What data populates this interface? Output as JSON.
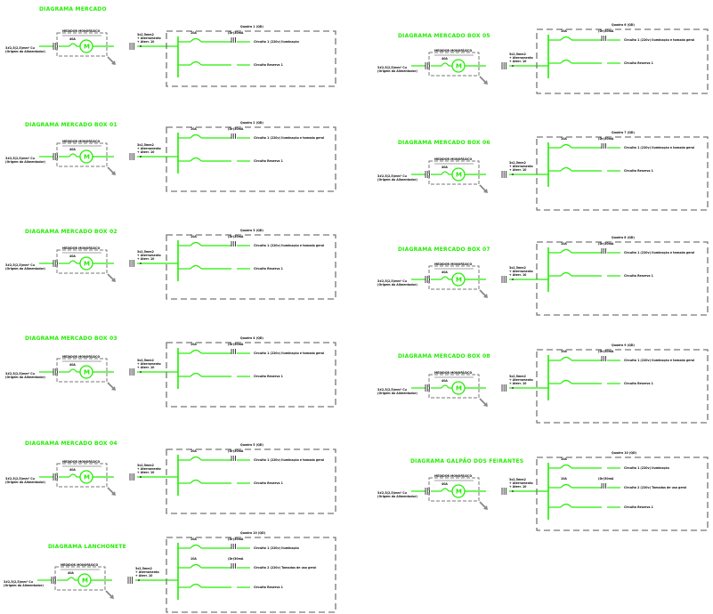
{
  "diagrams": [
    {
      "title": "DIAGRAMA MERCADO",
      "source": [
        "3#2,5(2,5)mm² Cu",
        "(Origem do Alimentador)"
      ],
      "meter_label": "MEDIDOR MONOFÁSICO",
      "main_breaker": "40A",
      "cable_label": [
        "3x2,5mm2",
        "+ Aterramento",
        "+ Aterr. 10"
      ],
      "board_title": "Quadro 1 (QD)",
      "circuits": [
        {
          "breaker": "10A",
          "dr": "(Dr)30mA",
          "label": "Circuito 1 (220v) Iluminação"
        },
        {
          "breaker": "",
          "dr": "",
          "label": "Circuito Reserva 1"
        }
      ]
    },
    {
      "title": "DIAGRAMA MERCADO BOX 01",
      "source": [
        "3#2,5(2,5)mm² Cu",
        "(Origem do Alimentador)"
      ],
      "meter_label": "MEDIDOR MONOFÁSICO",
      "main_breaker": "40A",
      "cable_label": [
        "3x2,5mm2",
        "+ Aterramento",
        "+ Aterr. 10"
      ],
      "board_title": "Quadro 2 (QD)",
      "circuits": [
        {
          "breaker": "10A",
          "dr": "(Dr)30mA",
          "label": "Circuito 1 (220v) Iluminação e tomada geral"
        },
        {
          "breaker": "",
          "dr": "",
          "label": "Circuito Reserva 1"
        }
      ]
    },
    {
      "title": "DIAGRAMA MERCADO BOX 02",
      "source": [
        "3#2,5(2,5)mm² Cu",
        "(Origem do Alimentador)"
      ],
      "meter_label": "MEDIDOR MONOFÁSICO",
      "main_breaker": "40A",
      "cable_label": [
        "3x2,5mm2",
        "+ Aterramento",
        "+ Aterr. 10"
      ],
      "board_title": "Quadro 3 (QD)",
      "circuits": [
        {
          "breaker": "10A",
          "dr": "(Dr)30mA",
          "label": "Circuito 1 (220v) Iluminação e tomada geral"
        },
        {
          "breaker": "",
          "dr": "",
          "label": "Circuito Reserva 1"
        }
      ]
    },
    {
      "title": "DIAGRAMA MERCADO BOX 03",
      "source": [
        "3#2,5(2,5)mm² Cu",
        "(Origem do Alimentador)"
      ],
      "meter_label": "MEDIDOR MONOFÁSICO",
      "main_breaker": "40A",
      "cable_label": [
        "3x2,5mm2",
        "+ Aterramento",
        "+ Aterr. 10"
      ],
      "board_title": "Quadro 4 (QD)",
      "circuits": [
        {
          "breaker": "10A",
          "dr": "(Dr)30mA",
          "label": "Circuito 1 (220v) Iluminação e tomada geral"
        },
        {
          "breaker": "",
          "dr": "",
          "label": "Circuito Reserva 1"
        }
      ]
    },
    {
      "title": "DIAGRAMA MERCADO BOX 04",
      "source": [
        "3#2,5(2,5)mm² Cu",
        "(Origem do Alimentador)"
      ],
      "meter_label": "MEDIDOR MONOFÁSICO",
      "main_breaker": "40A",
      "cable_label": [
        "3x2,5mm2",
        "+ Aterramento",
        "+ Aterr. 10"
      ],
      "board_title": "Quadro 5 (QD)",
      "circuits": [
        {
          "breaker": "10A",
          "dr": "(Dr)30mA",
          "label": "Circuito 1 (220v) Iluminação e tomada geral"
        },
        {
          "breaker": "",
          "dr": "",
          "label": "Circuito Reserva 1"
        }
      ]
    },
    {
      "title": "DIAGRAMA LANCHONETE",
      "source": [
        "3#2,5(2,5)mm² Cu",
        "(Origem do Alimentador)"
      ],
      "meter_label": "MEDIDOR MONOFÁSICO",
      "main_breaker": "40A",
      "cable_label": [
        "3x2,5mm2",
        "+ Aterramento",
        "+ Aterr. 10"
      ],
      "board_title": "Quadro 10 (QD)",
      "circuits": [
        {
          "breaker": "10A",
          "dr": "(Dr)30mA",
          "label": "Circuito 1 (220v) Iluminação"
        },
        {
          "breaker": "10A",
          "dr": "(Dr)30mA",
          "label": "Circuito 2 (220v) Tomadas de uso geral"
        },
        {
          "breaker": "",
          "dr": "",
          "label": "Circuito Reserva 1"
        }
      ]
    },
    {
      "title": "DIAGRAMA MERCADO BOX 05",
      "source": [
        "3#2,5(2,5)mm² Cu",
        "(Origem do Alimentador)"
      ],
      "meter_label": "MEDIDOR MONOFÁSICO",
      "main_breaker": "40A",
      "cable_label": [
        "3x2,5mm2",
        "+ Aterramento",
        "+ Aterr. 10"
      ],
      "board_title": "Quadro 6 (QD)",
      "circuits": [
        {
          "breaker": "10A",
          "dr": "(Dr)30mA",
          "label": "Circuito 1 (220v) Iluminação e tomada geral"
        },
        {
          "breaker": "",
          "dr": "",
          "label": "Circuito Reserva 1"
        }
      ]
    },
    {
      "title": "DIAGRAMA MERCADO BOX 06",
      "source": [
        "3#2,5(2,5)mm² Cu",
        "(Origem do Alimentador)"
      ],
      "meter_label": "MEDIDOR MONOFÁSICO",
      "main_breaker": "40A",
      "cable_label": [
        "3x2,5mm2",
        "+ Aterramento",
        "+ Aterr. 10"
      ],
      "board_title": "Quadro 7 (QD)",
      "circuits": [
        {
          "breaker": "10A",
          "dr": "(Dr)30mA",
          "label": "Circuito 1 (220v) Iluminação e tomada geral"
        },
        {
          "breaker": "",
          "dr": "",
          "label": "Circuito Reserva 1"
        }
      ]
    },
    {
      "title": "DIAGRAMA MERCADO BOX 07",
      "source": [
        "3#2,5(2,5)mm² Cu",
        "(Origem do Alimentador)"
      ],
      "meter_label": "MEDIDOR MONOFÁSICO",
      "main_breaker": "40A",
      "cable_label": [
        "3x2,5mm2",
        "+ Aterramento",
        "+ Aterr. 10"
      ],
      "board_title": "Quadro 8 (QD)",
      "circuits": [
        {
          "breaker": "10A",
          "dr": "(Dr)30mA",
          "label": "Circuito 1 (220v) Iluminação e tomada geral"
        },
        {
          "breaker": "",
          "dr": "",
          "label": "Circuito Reserva 1"
        }
      ]
    },
    {
      "title": "DIAGRAMA MERCADO BOX 08",
      "source": [
        "3#2,5(2,5)mm² Cu",
        "(Origem do Alimentador)"
      ],
      "meter_label": "MEDIDOR MONOFÁSICO",
      "main_breaker": "40A",
      "cable_label": [
        "3x2,5mm2",
        "+ Aterramento",
        "+ Aterr. 10"
      ],
      "board_title": "Quadro 9 (QD)",
      "circuits": [
        {
          "breaker": "10A",
          "dr": "(Dr)30mA",
          "label": "Circuito 1 (220v) Iluminação e tomada geral"
        },
        {
          "breaker": "",
          "dr": "",
          "label": "Circuito Reserva 1"
        }
      ]
    },
    {
      "title": "DIAGRAMA GALPÃO DOS FEIRANTES",
      "source": [
        "3#2,5(2,5)mm² Cu",
        "(Origem do Alimentador)"
      ],
      "meter_label": "MEDIDOR MONOFÁSICO",
      "main_breaker": "40A",
      "cable_label": [
        "3x2,5mm2",
        "+ Aterramento",
        "+ Aterr. 10"
      ],
      "board_title": "Quadro 10 (QD)",
      "circuits": [
        {
          "breaker": "10A",
          "dr": "",
          "label": "Circuito 1 (220v) Iluminação"
        },
        {
          "breaker": "10A",
          "dr": "(Dr)30mA",
          "label": "Circuito 2 (220v) Tomadas de uso geral"
        },
        {
          "breaker": "",
          "dr": "",
          "label": "Circuito Reserva 1"
        }
      ]
    }
  ],
  "colors": {
    "wire": "#22ee00",
    "dashed_box": "#777777",
    "text": "#111111"
  }
}
